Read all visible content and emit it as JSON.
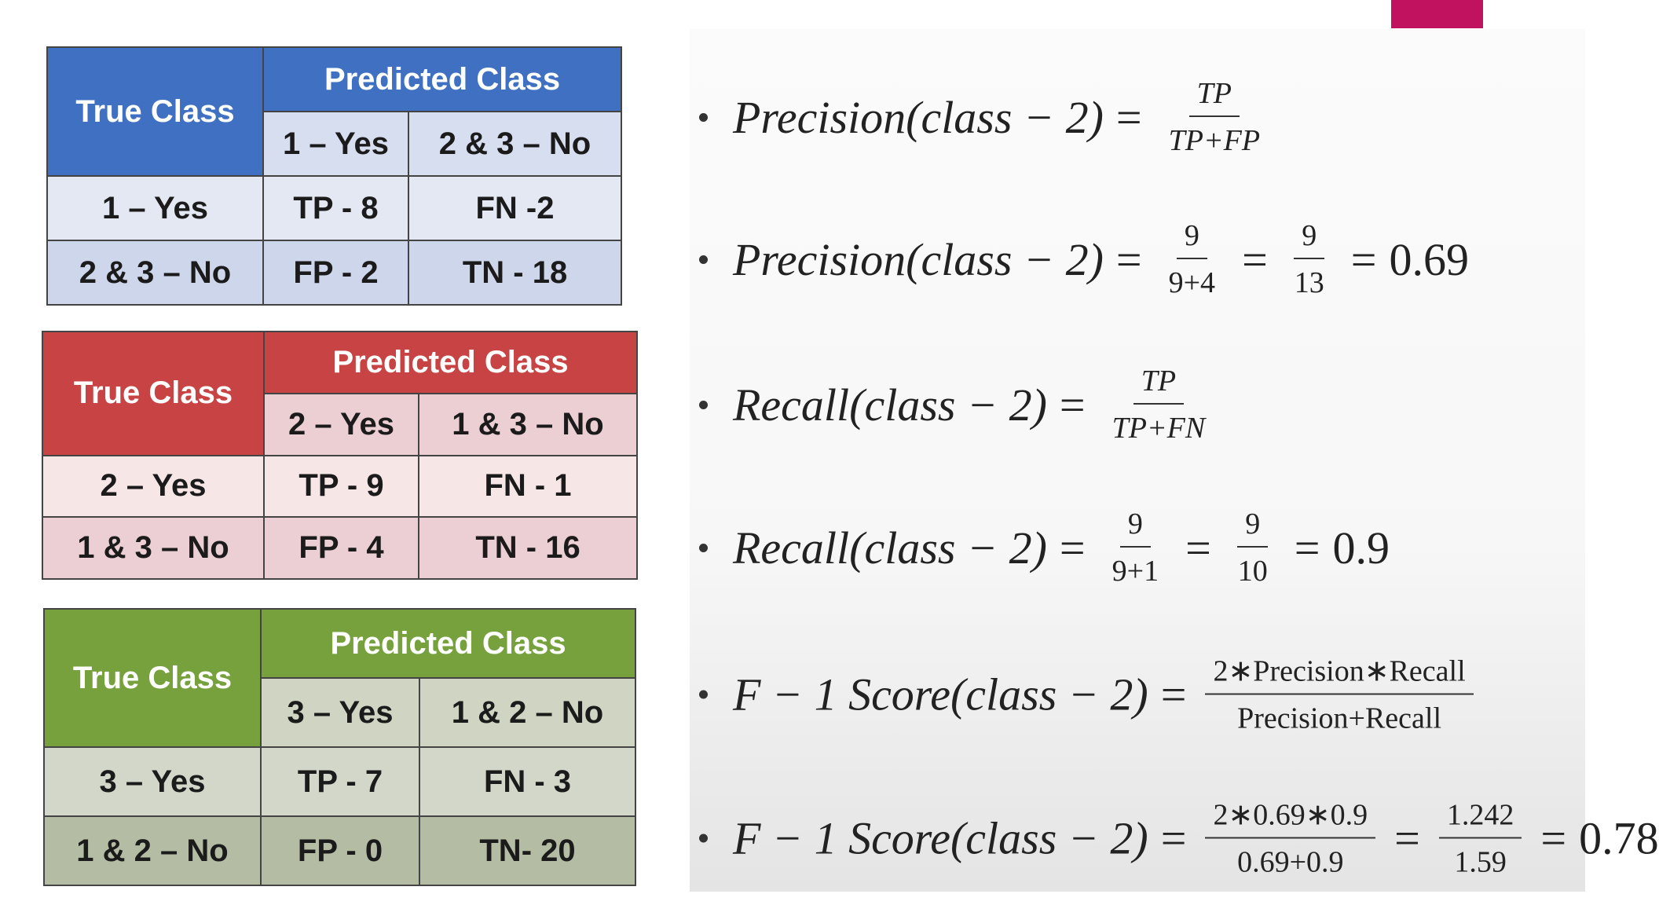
{
  "tables": [
    {
      "true_class": "True Class",
      "predicted_class": "Predicted Class",
      "columns": [
        "1 – Yes",
        "2 & 3 – No"
      ],
      "rows": [
        [
          "1 – Yes",
          "TP - 8",
          "FN -2"
        ],
        [
          "2 & 3 – No",
          "FP - 2",
          "TN - 18"
        ]
      ]
    },
    {
      "true_class": "True Class",
      "predicted_class": "Predicted Class",
      "columns": [
        "2 – Yes",
        "1 & 3 – No"
      ],
      "rows": [
        [
          "2 – Yes",
          "TP - 9",
          "FN - 1"
        ],
        [
          "1 & 3 – No",
          "FP - 4",
          "TN - 16"
        ]
      ]
    },
    {
      "true_class": "True Class",
      "predicted_class": "Predicted Class",
      "columns": [
        "3 – Yes",
        "1 & 2 – No"
      ],
      "rows": [
        [
          "3 – Yes",
          "TP - 7",
          "FN - 3"
        ],
        [
          "1 & 2 – No",
          "FP - 0",
          "TN- 20"
        ]
      ]
    }
  ],
  "formulas": [
    {
      "parts": [
        "Precision(class − 2)",
        "=",
        {
          "num": "TP",
          "den": "TP+FP"
        }
      ]
    },
    {
      "parts": [
        "Precision(class − 2)",
        "=",
        {
          "num": "9",
          "den": "9+4"
        },
        "=",
        {
          "num": "9",
          "den": "13"
        },
        "=",
        "0.69"
      ]
    },
    {
      "parts": [
        "Recall(class − 2)",
        "=",
        {
          "num": "TP",
          "den": "TP+FN"
        }
      ]
    },
    {
      "parts": [
        "Recall(class − 2)",
        "=",
        {
          "num": "9",
          "den": "9+1"
        },
        "=",
        {
          "num": "9",
          "den": "10"
        },
        "=",
        "0.9"
      ]
    },
    {
      "parts": [
        "F − 1 Score(class − 2)",
        "=",
        {
          "num": "2∗Precision∗Recall",
          "den": "Precision+Recall"
        }
      ]
    },
    {
      "parts": [
        "F − 1 Score(class − 2)",
        "=",
        {
          "num": "2∗0.69∗0.9",
          "den": "0.69+0.9"
        },
        "=",
        {
          "num": "1.242",
          "den": "1.59"
        },
        "=",
        "0.78"
      ]
    }
  ]
}
